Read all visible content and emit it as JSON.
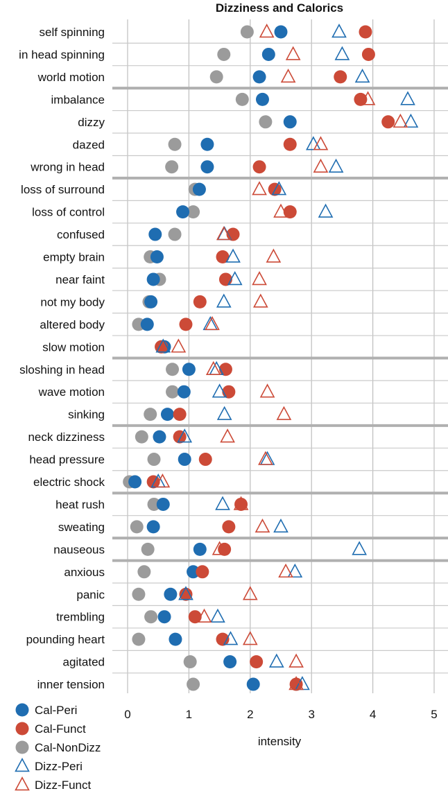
{
  "chart_data": {
    "type": "scatter",
    "title": "Dizziness and Calorics",
    "xlabel": "intensity",
    "ylabel": "",
    "xlim": [
      0,
      5
    ],
    "xticks": [
      "0",
      "1",
      "2",
      "3",
      "4",
      "5"
    ],
    "grid": true,
    "legend_position": "bottom-left",
    "categories": [
      "self spinning",
      "in head spinning",
      "world motion",
      "imbalance",
      "dizzy",
      "dazed",
      "wrong in head",
      "loss of surround",
      "loss of control",
      "confused",
      "empty brain",
      "near faint",
      "not my body",
      "altered body",
      "slow motion",
      "sloshing in head",
      "wave motion",
      "sinking",
      "neck dizziness",
      "head pressure",
      "electric shock",
      "heat rush",
      "sweating",
      "nauseous",
      "anxious",
      "panic",
      "trembling",
      "pounding heart",
      "agitated",
      "inner tension"
    ],
    "group_breaks_after": [
      2,
      6,
      14,
      17,
      20,
      22,
      23
    ],
    "series": [
      {
        "name": "Cal-Peri",
        "marker": "circle",
        "color": "#1f6db1",
        "values": [
          2.5,
          2.3,
          2.15,
          2.2,
          2.65,
          1.3,
          1.3,
          1.17,
          0.9,
          0.45,
          0.48,
          0.42,
          0.38,
          0.32,
          0.6,
          1.0,
          0.92,
          0.65,
          0.52,
          0.93,
          0.12,
          0.58,
          0.42,
          1.18,
          1.07,
          0.7,
          0.6,
          0.78,
          1.67,
          2.05
        ]
      },
      {
        "name": "Cal-Funct",
        "marker": "circle",
        "color": "#cc4a37",
        "values": [
          3.88,
          3.93,
          3.47,
          3.8,
          4.25,
          2.65,
          2.15,
          2.4,
          2.65,
          1.72,
          1.55,
          1.6,
          1.18,
          0.95,
          0.55,
          1.6,
          1.65,
          0.85,
          0.85,
          1.27,
          0.42,
          1.85,
          1.65,
          1.58,
          1.22,
          0.95,
          1.1,
          1.55,
          2.1,
          2.75
        ]
      },
      {
        "name": "Cal-NonDizz",
        "marker": "circle",
        "color": "#9b9b9b",
        "values": [
          1.95,
          1.57,
          1.45,
          1.87,
          2.25,
          0.77,
          0.72,
          1.1,
          1.07,
          0.77,
          0.37,
          0.52,
          0.35,
          0.18,
          0.55,
          0.73,
          0.73,
          0.37,
          0.23,
          0.43,
          0.03,
          0.43,
          0.15,
          0.33,
          0.27,
          0.18,
          0.38,
          0.18,
          1.02,
          1.07
        ]
      },
      {
        "name": "Dizz-Peri",
        "marker": "triangle",
        "color": "#1f6db1",
        "values": [
          3.45,
          3.5,
          3.83,
          4.57,
          4.62,
          3.03,
          3.4,
          2.47,
          3.23,
          1.58,
          1.72,
          1.75,
          1.57,
          1.35,
          0.58,
          1.45,
          1.5,
          1.58,
          0.93,
          2.28,
          0.5,
          1.55,
          2.5,
          3.78,
          2.73,
          0.95,
          1.47,
          1.68,
          2.43,
          2.85
        ]
      },
      {
        "name": "Dizz-Funct",
        "marker": "triangle",
        "color": "#cc4a37",
        "values": [
          2.27,
          2.7,
          2.62,
          3.92,
          4.45,
          3.15,
          3.15,
          2.15,
          2.5,
          1.57,
          2.38,
          2.15,
          2.17,
          1.38,
          0.83,
          1.4,
          2.28,
          2.55,
          1.63,
          2.25,
          0.57,
          1.85,
          2.2,
          1.5,
          2.58,
          2.0,
          1.25,
          2.0,
          2.75,
          2.75
        ]
      }
    ]
  }
}
